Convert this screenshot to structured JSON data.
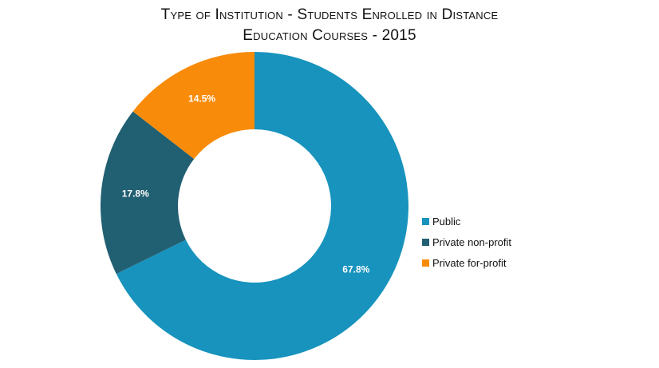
{
  "chart_data": {
    "type": "pie",
    "donut": true,
    "title_line1": "Type of Institution - Students Enrolled in Distance",
    "title_line2": "Education Courses - 2015",
    "legend_position": "right",
    "slices": [
      {
        "name": "Public",
        "value": 67.8,
        "label": "67.8%",
        "color": "#1793bd"
      },
      {
        "name": "Private non-profit",
        "value": 17.8,
        "label": "17.8%",
        "color": "#215f72"
      },
      {
        "name": "Private for-profit",
        "value": 14.5,
        "label": "14.5%",
        "color": "#f98b0a"
      }
    ]
  }
}
